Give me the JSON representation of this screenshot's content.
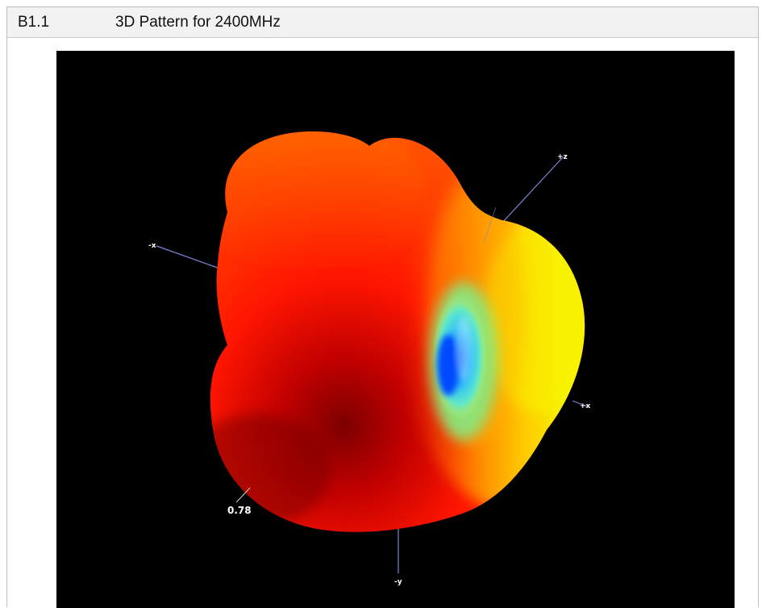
{
  "header": {
    "section_number": "B1.1",
    "section_title": "3D Pattern for 2400MHz"
  },
  "plot": {
    "background": "#000000",
    "axes": {
      "z_label": "+z",
      "neg_x_label": "-x",
      "pos_x_label": "+x",
      "y_label": "-y"
    },
    "scale_value": "0.78",
    "colors": {
      "axis_line": "#7b86d6",
      "max_red": "#ff1a00",
      "dark_red": "#9a0000",
      "orange": "#ff7a00",
      "yellow": "#f4f400",
      "cyan": "#44e0d0",
      "deep_blue": "#0060ff"
    }
  }
}
